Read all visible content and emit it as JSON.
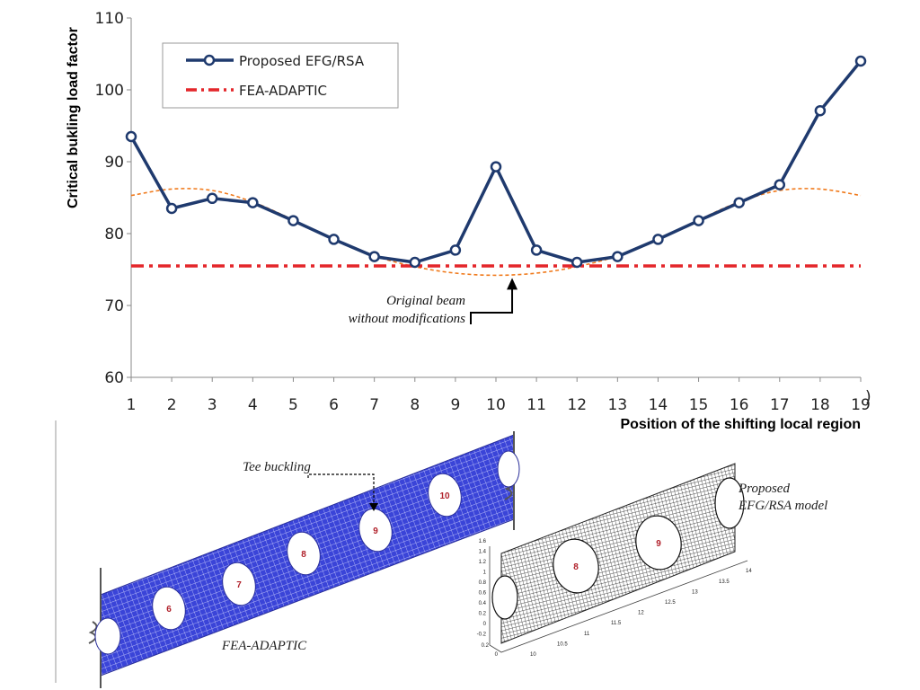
{
  "chart_data": {
    "type": "line",
    "xlabel": "Position of the shifting local region",
    "ylabel": "Critical bukling load factor",
    "x": [
      1,
      2,
      3,
      4,
      5,
      6,
      7,
      8,
      9,
      10,
      11,
      12,
      13,
      14,
      15,
      16,
      17,
      18,
      19
    ],
    "xticks": [
      "1",
      "2",
      "3",
      "4",
      "5",
      "6",
      "7",
      "8",
      "9",
      "10",
      "11",
      "12",
      "13",
      "14",
      "15",
      "16",
      "17",
      "18",
      "19"
    ],
    "yticks": [
      "60",
      "70",
      "80",
      "90",
      "100",
      "110"
    ],
    "xlim": [
      1,
      19
    ],
    "ylim": [
      60,
      110
    ],
    "legend_position": "top-left",
    "series": [
      {
        "name": "Proposed EFG/RSA",
        "color": "#1f3a6e",
        "values": [
          93.5,
          83.5,
          84.9,
          84.3,
          81.8,
          79.2,
          76.8,
          76.0,
          77.7,
          89.3,
          77.7,
          76.0,
          76.8,
          79.2,
          81.8,
          84.3,
          86.8,
          97.1,
          104.0
        ]
      },
      {
        "name": "FEA-ADAPTIC",
        "color": "#e4262a",
        "values": [
          75.5,
          75.5,
          75.5,
          75.5,
          75.5,
          75.5,
          75.5,
          75.5,
          75.5,
          75.5,
          75.5,
          75.5,
          75.5,
          75.5,
          75.5,
          75.5,
          75.5,
          75.5,
          75.5
        ]
      }
    ],
    "trend_curve": {
      "color": "#f07a1c",
      "x": [
        1,
        2,
        3,
        4,
        5,
        6,
        7,
        8,
        9,
        10,
        11,
        12,
        13,
        14,
        15,
        16,
        17,
        18,
        19
      ],
      "values": [
        85.3,
        86.2,
        86.0,
        84.4,
        81.9,
        79.2,
        76.9,
        75.4,
        74.5,
        74.2,
        74.5,
        75.4,
        76.9,
        79.2,
        81.9,
        84.4,
        86.0,
        86.2,
        85.3
      ]
    },
    "annotation": {
      "text_line1": "Original beam",
      "text_line2": "without modifications",
      "target_x": 10.4,
      "target_y": 74.2
    },
    "grid": false
  },
  "figure": {
    "tee_buckling_label": "Tee buckling",
    "fea_label": "FEA-ADAPTIC",
    "efg_label_line1": "Proposed",
    "efg_label_line2": "EFG/RSA model",
    "fea_holes": [
      "6",
      "7",
      "8",
      "9",
      "10"
    ],
    "efg_holes": [
      "8",
      "9"
    ],
    "efg_z_ticks": [
      "1.6",
      "1.4",
      "1.2",
      "1",
      "0.8",
      "0.6",
      "0.4",
      "0.2",
      "0",
      "-0.2"
    ],
    "efg_x_ticks": [
      "10",
      "10.5",
      "11",
      "11.5",
      "12",
      "12.5",
      "13",
      "13.5",
      "14"
    ],
    "efg_y_ticks": [
      "0.2",
      "0"
    ]
  }
}
